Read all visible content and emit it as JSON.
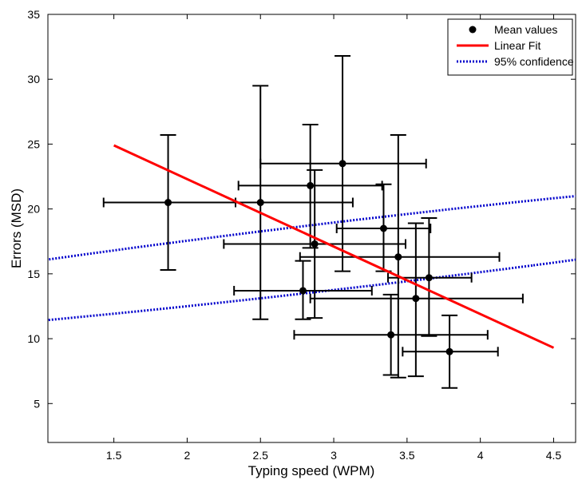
{
  "chart_data": {
    "type": "scatter",
    "title": "",
    "xlabel": "Typing speed (WPM)",
    "ylabel": "Errors (MSD)",
    "xlim": [
      1.05,
      4.65
    ],
    "ylim": [
      2,
      35
    ],
    "xticks": [
      1.5,
      2,
      2.5,
      3,
      3.5,
      4,
      4.5
    ],
    "yticks": [
      5,
      10,
      15,
      20,
      25,
      30,
      35
    ],
    "x_tick_labels": [
      "1.5",
      "2",
      "2.5",
      "3",
      "3.5",
      "4",
      "4.5"
    ],
    "y_tick_labels": [
      "5",
      "10",
      "15",
      "20",
      "25",
      "30",
      "35"
    ],
    "grid": false,
    "legend_position": "top-right",
    "legend": [
      "Mean values",
      "Linear Fit",
      "95% confidence"
    ],
    "series": [
      {
        "name": "Mean values",
        "color": "#000000",
        "points": [
          {
            "x": 1.87,
            "y": 20.5,
            "x_err": [
              1.43,
              2.33
            ],
            "y_err": [
              15.3,
              25.7
            ]
          },
          {
            "x": 2.5,
            "y": 20.5,
            "x_err": [
              1.87,
              3.13
            ],
            "y_err": [
              11.5,
              29.5
            ]
          },
          {
            "x": 2.84,
            "y": 21.8,
            "x_err": [
              2.35,
              3.33
            ],
            "y_err": [
              17.0,
              26.5
            ]
          },
          {
            "x": 3.06,
            "y": 23.5,
            "x_err": [
              2.5,
              3.63
            ],
            "y_err": [
              15.2,
              31.8
            ]
          },
          {
            "x": 2.87,
            "y": 17.3,
            "x_err": [
              2.25,
              3.49
            ],
            "y_err": [
              11.6,
              23.0
            ]
          },
          {
            "x": 2.79,
            "y": 13.7,
            "x_err": [
              2.32,
              3.26
            ],
            "y_err": [
              11.5,
              16.0
            ]
          },
          {
            "x": 3.34,
            "y": 18.5,
            "x_err": [
              3.02,
              3.66
            ],
            "y_err": [
              15.2,
              21.9
            ]
          },
          {
            "x": 3.44,
            "y": 16.3,
            "x_err": [
              2.77,
              4.13
            ],
            "y_err": [
              7.0,
              25.7
            ]
          },
          {
            "x": 3.65,
            "y": 14.7,
            "x_err": [
              3.37,
              3.94
            ],
            "y_err": [
              10.2,
              19.3
            ]
          },
          {
            "x": 3.56,
            "y": 13.1,
            "x_err": [
              2.84,
              4.29
            ],
            "y_err": [
              7.1,
              18.9
            ]
          },
          {
            "x": 3.39,
            "y": 10.3,
            "x_err": [
              2.73,
              4.05
            ],
            "y_err": [
              7.2,
              13.4
            ]
          },
          {
            "x": 3.79,
            "y": 9.0,
            "x_err": [
              3.47,
              4.12
            ],
            "y_err": [
              6.2,
              11.8
            ]
          }
        ]
      },
      {
        "name": "Linear Fit",
        "color": "#ff0000",
        "x": [
          1.5,
          4.5
        ],
        "y": [
          24.9,
          9.3
        ]
      },
      {
        "name": "95% confidence",
        "color": "#0000cc",
        "style": "dotted",
        "ellipse": {
          "cx": 3.11,
          "cy": 16.5,
          "rx": 1.51,
          "ry": 8.0,
          "rotation_deg": -34
        }
      }
    ]
  }
}
